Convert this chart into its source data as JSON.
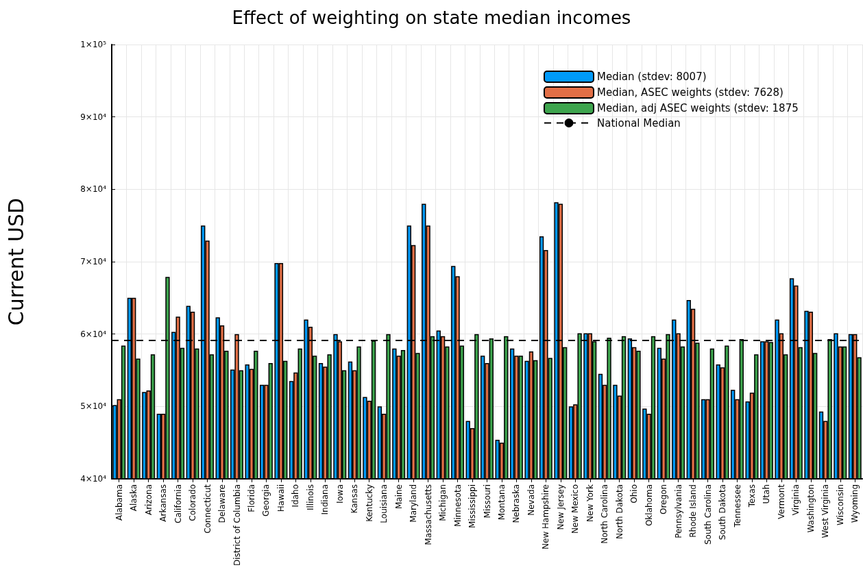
{
  "chart_data": {
    "type": "bar",
    "title": "Effect of weighting on state median incomes",
    "ylabel": "Current USD",
    "categories": [
      "Alabama",
      "Alaska",
      "Arizona",
      "Arkansas",
      "California",
      "Colorado",
      "Connecticut",
      "Delaware",
      "District of Columbia",
      "Florida",
      "Georgia",
      "Hawaii",
      "Idaho",
      "Illinois",
      "Indiana",
      "Iowa",
      "Kansas",
      "Kentucky",
      "Louisiana",
      "Maine",
      "Maryland",
      "Massachusetts",
      "Michigan",
      "Minnesota",
      "Mississippi",
      "Missouri",
      "Montana",
      "Nebraska",
      "Nevada",
      "New Hampshire",
      "New Jersey",
      "New Mexico",
      "New York",
      "North Carolina",
      "North Dakota",
      "Ohio",
      "Oklahoma",
      "Oregon",
      "Pennsylvania",
      "Rhode Island",
      "South Carolina",
      "South Dakota",
      "Tennessee",
      "Texas",
      "Utah",
      "Vermont",
      "Virginia",
      "Washington",
      "West Virginia",
      "Wisconsin",
      "Wyoming"
    ],
    "series": [
      {
        "name": "Median (stdev: 8007)",
        "color": "#009af9",
        "values": [
          50200,
          65000,
          52000,
          49000,
          60300,
          63900,
          75000,
          62300,
          55100,
          55800,
          53000,
          69800,
          53500,
          62000,
          56000,
          60000,
          56200,
          51300,
          50000,
          58000,
          75000,
          78000,
          60500,
          69400,
          48000,
          57000,
          45400,
          58000,
          56300,
          73500,
          78200,
          50000,
          60100,
          54500,
          53000,
          59400,
          49700,
          58100,
          62000,
          64700,
          51000,
          55800,
          52300,
          50700,
          59000,
          62000,
          67700,
          63200,
          49300,
          60100,
          60000
        ]
      },
      {
        "name": "Median, ASEC weights (stdev: 7628)",
        "color": "#e26f46",
        "values": [
          51000,
          65000,
          52200,
          49000,
          62400,
          63100,
          72900,
          61200,
          60000,
          55200,
          53000,
          69800,
          54700,
          61000,
          55500,
          59000,
          55000,
          50800,
          49000,
          57000,
          72300,
          75000,
          59700,
          68000,
          47000,
          56000,
          45000,
          57000,
          57600,
          71600,
          78000,
          50300,
          60100,
          53000,
          51500,
          58200,
          49000,
          56600,
          60100,
          63500,
          51000,
          55400,
          51000,
          51900,
          59000,
          60100,
          66700,
          63100,
          48000,
          58300,
          60000
        ]
      },
      {
        "name": "Median, adj ASEC weights (stdev: 1875",
        "color": "#3da44d",
        "values": [
          58400,
          56600,
          57200,
          67900,
          58100,
          58000,
          57200,
          57700,
          55000,
          57700,
          56000,
          56300,
          58000,
          57000,
          57200,
          55000,
          58300,
          59100,
          60000,
          57800,
          57400,
          59700,
          58300,
          58400,
          60000,
          59400,
          59700,
          57000,
          56400,
          56700,
          58200,
          60100,
          59000,
          59500,
          59700,
          57700,
          59700,
          60000,
          58300,
          58800,
          58000,
          58400,
          59300,
          57200,
          58900,
          57200,
          58200,
          57400,
          59300,
          58300,
          56800
        ]
      }
    ],
    "ylim": [
      40000,
      100000
    ],
    "yticks": [
      {
        "value": 40000,
        "label": "4×10⁴"
      },
      {
        "value": 50000,
        "label": "5×10⁴"
      },
      {
        "value": 60000,
        "label": "6×10⁴"
      },
      {
        "value": 70000,
        "label": "7×10⁴"
      },
      {
        "value": 80000,
        "label": "8×10⁴"
      },
      {
        "value": 90000,
        "label": "9×10⁴"
      },
      {
        "value": 100000,
        "label": "1×10⁵"
      }
    ],
    "ref_lines": [
      {
        "axis": "y",
        "value": 59100,
        "label": "National Median",
        "color": "#000000",
        "line_style": "dashed"
      }
    ],
    "grid": true,
    "legend": "top right"
  }
}
